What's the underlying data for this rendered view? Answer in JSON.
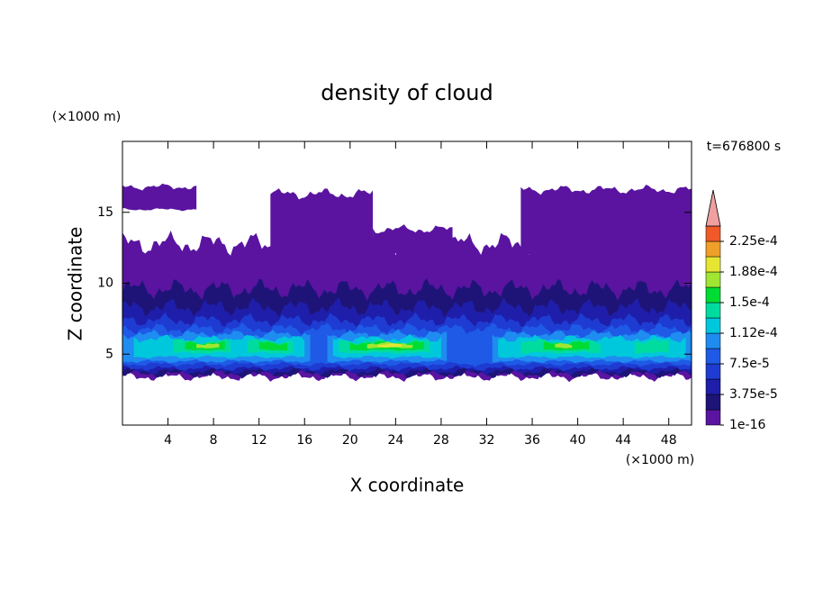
{
  "chart_data": {
    "type": "contour",
    "title": "density of cloud",
    "x_label": "X coordinate",
    "y_label": "Z coordinate",
    "x_unit": "(×1000 m)",
    "y_unit": "(×1000 m)",
    "annotation": "t=676800 s",
    "xlim": [
      0,
      50
    ],
    "xticks": [
      4,
      8,
      12,
      16,
      20,
      24,
      28,
      32,
      36,
      40,
      44,
      48
    ],
    "ylim": [
      0,
      20
    ],
    "yticks": [
      5,
      10,
      15
    ],
    "colorbar": {
      "colors": [
        "#5a14a0",
        "#1e1478",
        "#1e1eaa",
        "#1e3cd2",
        "#1e5ae6",
        "#1e8cf0",
        "#00c8dc",
        "#00dca0",
        "#00dc32",
        "#a0e632",
        "#e6e632",
        "#f0a028",
        "#f05a28",
        "#dc1e1e"
      ],
      "extend_color": "#f0a0a0",
      "ticks": [
        {
          "value": 1e-16,
          "label": "1e-16"
        },
        {
          "value": 3.75e-05,
          "label": "3.75e-5"
        },
        {
          "value": 7.5e-05,
          "label": "7.5e-5"
        },
        {
          "value": 0.0001125,
          "label": "1.12e-4"
        },
        {
          "value": 0.00015,
          "label": "1.5e-4"
        },
        {
          "value": 0.0001875,
          "label": "1.88e-4"
        },
        {
          "value": 0.000225,
          "label": "2.25e-4"
        }
      ],
      "step": 1.875e-05
    }
  }
}
